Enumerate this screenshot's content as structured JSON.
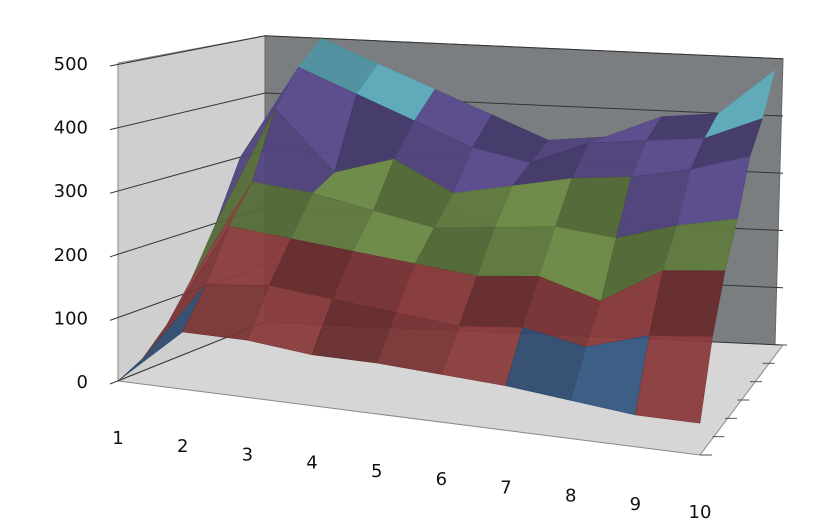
{
  "chart_data": {
    "type": "surface",
    "categories": [
      "1",
      "2",
      "3",
      "4",
      "5",
      "6",
      "7",
      "8",
      "9",
      "10"
    ],
    "series": [
      {
        "values": [
          0,
          90,
          90,
          80,
          80,
          75,
          70,
          60,
          50,
          50
        ]
      },
      {
        "values": [
          20,
          150,
          160,
          150,
          140,
          130,
          140,
          120,
          150,
          160
        ]
      },
      {
        "values": [
          60,
          230,
          220,
          210,
          200,
          190,
          200,
          170,
          230,
          240
        ]
      },
      {
        "values": [
          120,
          290,
          280,
          260,
          240,
          250,
          260,
          250,
          280,
          300
        ]
      },
      {
        "values": [
          200,
          400,
          300,
          330,
          280,
          300,
          320,
          330,
          350,
          380
        ]
      },
      {
        "values": [
          300,
          460,
          420,
          380,
          340,
          320,
          360,
          370,
          380,
          420
        ]
      },
      {
        "values": [
          350,
          500,
          460,
          420,
          380,
          340,
          350,
          390,
          400,
          480
        ]
      }
    ],
    "band_colors": [
      "#3d6494",
      "#8a3b3c",
      "#6f8d48",
      "#5c4d8e",
      "#6cc6d8"
    ],
    "ylim": [
      0,
      500
    ],
    "yticks": [
      0,
      100,
      200,
      300,
      400,
      500
    ],
    "grid": true
  }
}
